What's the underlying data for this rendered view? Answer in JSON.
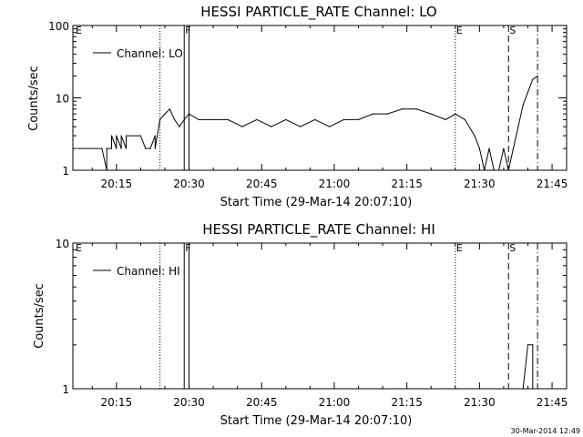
{
  "footer": {
    "timestamp": "30-Mar-2014 12:49"
  },
  "chart_data": [
    {
      "type": "line",
      "title": "HESSI PARTICLE_RATE Channel: LO",
      "xlabel": "Start Time (29-Mar-14 20:07:10)",
      "ylabel": "Counts/sec",
      "yscale": "log",
      "ylim": [
        1,
        100
      ],
      "xlim_minutes": [
        20.1,
        21.8
      ],
      "x_tick_labels": [
        "20:15",
        "20:30",
        "20:45",
        "21:00",
        "21:15",
        "21:30",
        "21:45"
      ],
      "y_tick_labels": [
        "1",
        "10",
        "100"
      ],
      "legend": {
        "position": "top-left",
        "entries": [
          "Channel: LO"
        ]
      },
      "markers": [
        {
          "label": "E",
          "time": "20:07:10",
          "style": "none"
        },
        {
          "label": "",
          "time": "20:24",
          "style": "dotted"
        },
        {
          "label": "F",
          "time": "20:29",
          "style": "solid"
        },
        {
          "label": "",
          "time": "20:30",
          "style": "solid"
        },
        {
          "label": "E",
          "time": "21:25",
          "style": "dotted"
        },
        {
          "label": "S",
          "time": "21:36",
          "style": "dashed"
        },
        {
          "label": "",
          "time": "21:42",
          "style": "dashdot"
        }
      ],
      "series": [
        {
          "name": "Channel: LO",
          "time": [
            "20:07",
            "20:12",
            "20:13",
            "20:13",
            "20:14",
            "20:14",
            "20:15",
            "20:15",
            "20:16",
            "20:16",
            "20:17",
            "20:17",
            "20:20",
            "20:21",
            "20:22",
            "20:23",
            "20:23",
            "20:24",
            "20:25",
            "20:26",
            "20:27",
            "20:28",
            "20:29",
            "20:30",
            "20:32",
            "20:35",
            "20:38",
            "20:41",
            "20:44",
            "20:47",
            "20:50",
            "20:53",
            "20:56",
            "20:59",
            "21:02",
            "21:05",
            "21:08",
            "21:11",
            "21:14",
            "21:17",
            "21:20",
            "21:23",
            "21:25",
            "21:27",
            "21:29",
            "21:30",
            "21:31",
            "21:32",
            "21:33",
            "21:34",
            "21:35",
            "21:36",
            "21:37",
            "21:38",
            "21:39",
            "21:40",
            "21:41",
            "21:42"
          ],
          "values": [
            2,
            2,
            1,
            2,
            2,
            3,
            2,
            3,
            2,
            3,
            2,
            3,
            3,
            2,
            2,
            3,
            2,
            5,
            6,
            7,
            5,
            4,
            5,
            6,
            5,
            5,
            5,
            4,
            5,
            4,
            5,
            4,
            5,
            4,
            5,
            5,
            6,
            6,
            7,
            7,
            6,
            5,
            6,
            5,
            3,
            2,
            1,
            2,
            1,
            1,
            2,
            1,
            2,
            4,
            8,
            12,
            18,
            20
          ]
        }
      ]
    },
    {
      "type": "line",
      "title": "HESSI PARTICLE_RATE Channel: HI",
      "xlabel": "Start Time (29-Mar-14 20:07:10)",
      "ylabel": "Counts/sec",
      "yscale": "log",
      "ylim": [
        1,
        10
      ],
      "xlim_minutes": [
        20.1,
        21.8
      ],
      "x_tick_labels": [
        "20:15",
        "20:30",
        "20:45",
        "21:00",
        "21:15",
        "21:30",
        "21:45"
      ],
      "y_tick_labels": [
        "1",
        "10"
      ],
      "legend": {
        "position": "top-left",
        "entries": [
          "Channel: HI"
        ]
      },
      "markers": [
        {
          "label": "E",
          "time": "20:07:10",
          "style": "none"
        },
        {
          "label": "",
          "time": "20:24",
          "style": "dotted"
        },
        {
          "label": "F",
          "time": "20:29",
          "style": "solid"
        },
        {
          "label": "",
          "time": "20:30",
          "style": "solid"
        },
        {
          "label": "E",
          "time": "21:25",
          "style": "dotted"
        },
        {
          "label": "S",
          "time": "21:36",
          "style": "dashed"
        },
        {
          "label": "",
          "time": "21:42",
          "style": "dashdot"
        }
      ],
      "series": [
        {
          "name": "Channel: HI",
          "time": [
            "21:39",
            "21:40",
            "21:41",
            "21:41"
          ],
          "values": [
            1,
            2,
            2,
            1
          ]
        }
      ]
    }
  ]
}
